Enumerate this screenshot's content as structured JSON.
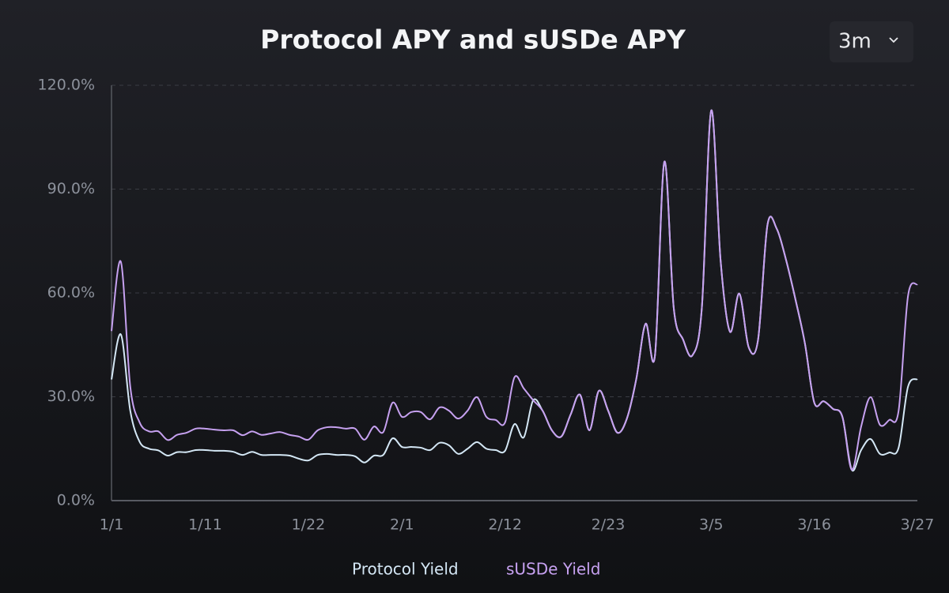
{
  "controls": {
    "range": "3m"
  },
  "chart_data": {
    "type": "line",
    "title": "Protocol APY and sUSDe APY",
    "categories": [
      "1/1",
      null,
      null,
      null,
      null,
      null,
      null,
      null,
      null,
      null,
      "1/11",
      null,
      null,
      null,
      null,
      null,
      null,
      null,
      null,
      null,
      null,
      "1/22",
      null,
      null,
      null,
      null,
      null,
      null,
      null,
      null,
      null,
      "2/1",
      null,
      null,
      null,
      null,
      null,
      null,
      null,
      null,
      null,
      null,
      "2/12",
      null,
      null,
      null,
      null,
      null,
      null,
      null,
      null,
      null,
      null,
      "2/23",
      null,
      null,
      null,
      null,
      null,
      null,
      null,
      null,
      null,
      null,
      "3/5",
      null,
      null,
      null,
      null,
      null,
      null,
      null,
      null,
      null,
      null,
      "3/16",
      null,
      null,
      null,
      null,
      null,
      null,
      null,
      null,
      null,
      null,
      "3/27"
    ],
    "series": [
      {
        "name": "Protocol Yield",
        "color": "#d4e7f5",
        "values": [
          35,
          48,
          26,
          17,
          15,
          14.5,
          13,
          14,
          14,
          14.6,
          14.6,
          14.4,
          14.4,
          14.1,
          13.2,
          14.1,
          13.2,
          13.2,
          13.2,
          13,
          12.1,
          11.6,
          13.2,
          13.5,
          13.2,
          13.2,
          12.8,
          11,
          13,
          13.2,
          18,
          15.5,
          15.5,
          15.3,
          14.6,
          16.7,
          16,
          13.5,
          15,
          16.9,
          15,
          14.6,
          14.4,
          22.1,
          18.3,
          29,
          26,
          20.3,
          18.5,
          24.9,
          30.6,
          20.3,
          31.7,
          26,
          19.6,
          23.7,
          35.1,
          51.1,
          42,
          97.9,
          55.7,
          46.5,
          42,
          55.7,
          112.7,
          69.4,
          48.8,
          59.8,
          44.3,
          46.5,
          79.6,
          78.5,
          69.4,
          58,
          45.4,
          28.3,
          28.7,
          26.5,
          24.2,
          8.9,
          14.6,
          17.8,
          13.5,
          13.9,
          15.3,
          32.9,
          35.1
        ]
      },
      {
        "name": "sUSDe Yield",
        "color": "#c6a1f0",
        "values": [
          49,
          69,
          33,
          22.6,
          20,
          20,
          17.5,
          19,
          19.6,
          20.8,
          20.8,
          20.5,
          20.3,
          20.3,
          18.9,
          20,
          19,
          19.4,
          19.8,
          19,
          18.5,
          17.6,
          20.3,
          21.2,
          21.2,
          20.8,
          20.8,
          17.6,
          21.4,
          19.8,
          28.3,
          24.2,
          25.6,
          25.6,
          23.5,
          26.9,
          26,
          23.7,
          26,
          29.9,
          24.2,
          23.3,
          22.6,
          35.6,
          32.4,
          29,
          26,
          20.3,
          18.5,
          24.9,
          30.6,
          20.3,
          31.7,
          26,
          19.6,
          23.7,
          35.1,
          51.1,
          42,
          97.9,
          55.7,
          46.5,
          42,
          55.7,
          112.7,
          69.4,
          48.8,
          59.8,
          44.3,
          46.5,
          79.6,
          78.5,
          69.4,
          58,
          45.4,
          28.3,
          28.7,
          26.5,
          24.2,
          8.9,
          21.4,
          29.9,
          21.9,
          23.3,
          26,
          59.1,
          62.5
        ]
      }
    ],
    "ylim": [
      0,
      120
    ],
    "yticks": [
      {
        "value": 0,
        "label": "0.0%"
      },
      {
        "value": 30,
        "label": "30.0%"
      },
      {
        "value": 60,
        "label": "60.0%"
      },
      {
        "value": 90,
        "label": "90.0%"
      },
      {
        "value": 120,
        "label": "120.0%"
      }
    ],
    "grid": true,
    "legend": "bottom"
  }
}
